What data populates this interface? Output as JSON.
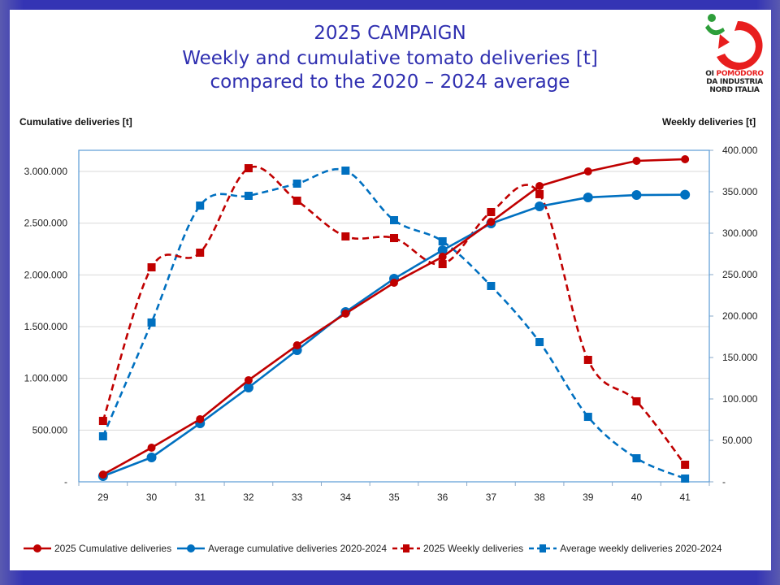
{
  "header": {
    "title_line1": "2025 CAMPAIGN",
    "title_line2": "Weekly and cumulative tomato deliveries [t]",
    "title_line3": "compared to the 2020 – 2024 average"
  },
  "logo": {
    "line1_a": "OI ",
    "line1_b": "POMODORO",
    "line2": "DA INDUSTRIA",
    "line3": "NORD  ITALIA"
  },
  "colors": {
    "frame": "#3434b4",
    "title": "#2f2fb0",
    "series_2025": "#c00000",
    "series_avg": "#0070c0",
    "grid": "#d9d9d9",
    "plot_border": "#5b9bd5"
  },
  "chart_data": {
    "type": "line",
    "title": "2025 CAMPAIGN — Weekly and cumulative tomato deliveries [t] compared to the 2020 – 2024 average",
    "xlabel": "",
    "ylabel": "Cumulative deliveries [t]",
    "y2label": "Weekly deliveries [t]",
    "categories": [
      "29",
      "30",
      "31",
      "32",
      "33",
      "34",
      "35",
      "36",
      "37",
      "38",
      "39",
      "40",
      "41"
    ],
    "ylim": [
      0,
      3200000
    ],
    "y_ticks": [
      0,
      500000,
      1000000,
      1500000,
      2000000,
      2500000,
      3000000
    ],
    "y_tick_labels": [
      "-",
      "500.000",
      "1.000.000",
      "1.500.000",
      "2.000.000",
      "2.500.000",
      "3.000.000"
    ],
    "y2lim": [
      0,
      400000
    ],
    "y2_ticks": [
      0,
      50000,
      100000,
      150000,
      200000,
      250000,
      300000,
      350000,
      400000
    ],
    "y2_tick_labels": [
      "-",
      "50.000",
      "100.000",
      "150.000",
      "200.000",
      "250.000",
      "300.000",
      "350.000",
      "400.000"
    ],
    "grid": true,
    "legend_position": "bottom",
    "series": [
      {
        "name": "2025 Cumulative deliveries",
        "axis": "left",
        "style": "solid",
        "marker": "circle",
        "color": "#c00000",
        "values": [
          70000,
          330000,
          605000,
          982000,
          1319000,
          1626000,
          1924000,
          2175000,
          2513000,
          2859000,
          3000000,
          3102000,
          3118000
        ]
      },
      {
        "name": "Average cumulative deliveries 2020-2024",
        "axis": "left",
        "style": "solid",
        "marker": "circle",
        "color": "#0070c0",
        "values": [
          55000,
          236000,
          565000,
          911000,
          1272000,
          1641000,
          1963000,
          2238000,
          2497000,
          2662000,
          2749000,
          2772000,
          2775000
        ]
      },
      {
        "name": "2025 Weekly deliveries",
        "axis": "right",
        "style": "dashed",
        "marker": "square",
        "color": "#c00000",
        "values": [
          73500,
          258800,
          276500,
          378400,
          339200,
          296100,
          294100,
          262700,
          325500,
          347100,
          147100,
          97100,
          20600
        ]
      },
      {
        "name": "Average weekly deliveries 2020-2024",
        "axis": "right",
        "style": "dashed",
        "marker": "square",
        "color": "#0070c0",
        "values": [
          54900,
          192200,
          333300,
          345100,
          359800,
          375500,
          315700,
          290200,
          236300,
          168600,
          78400,
          28400,
          3900
        ]
      }
    ]
  }
}
